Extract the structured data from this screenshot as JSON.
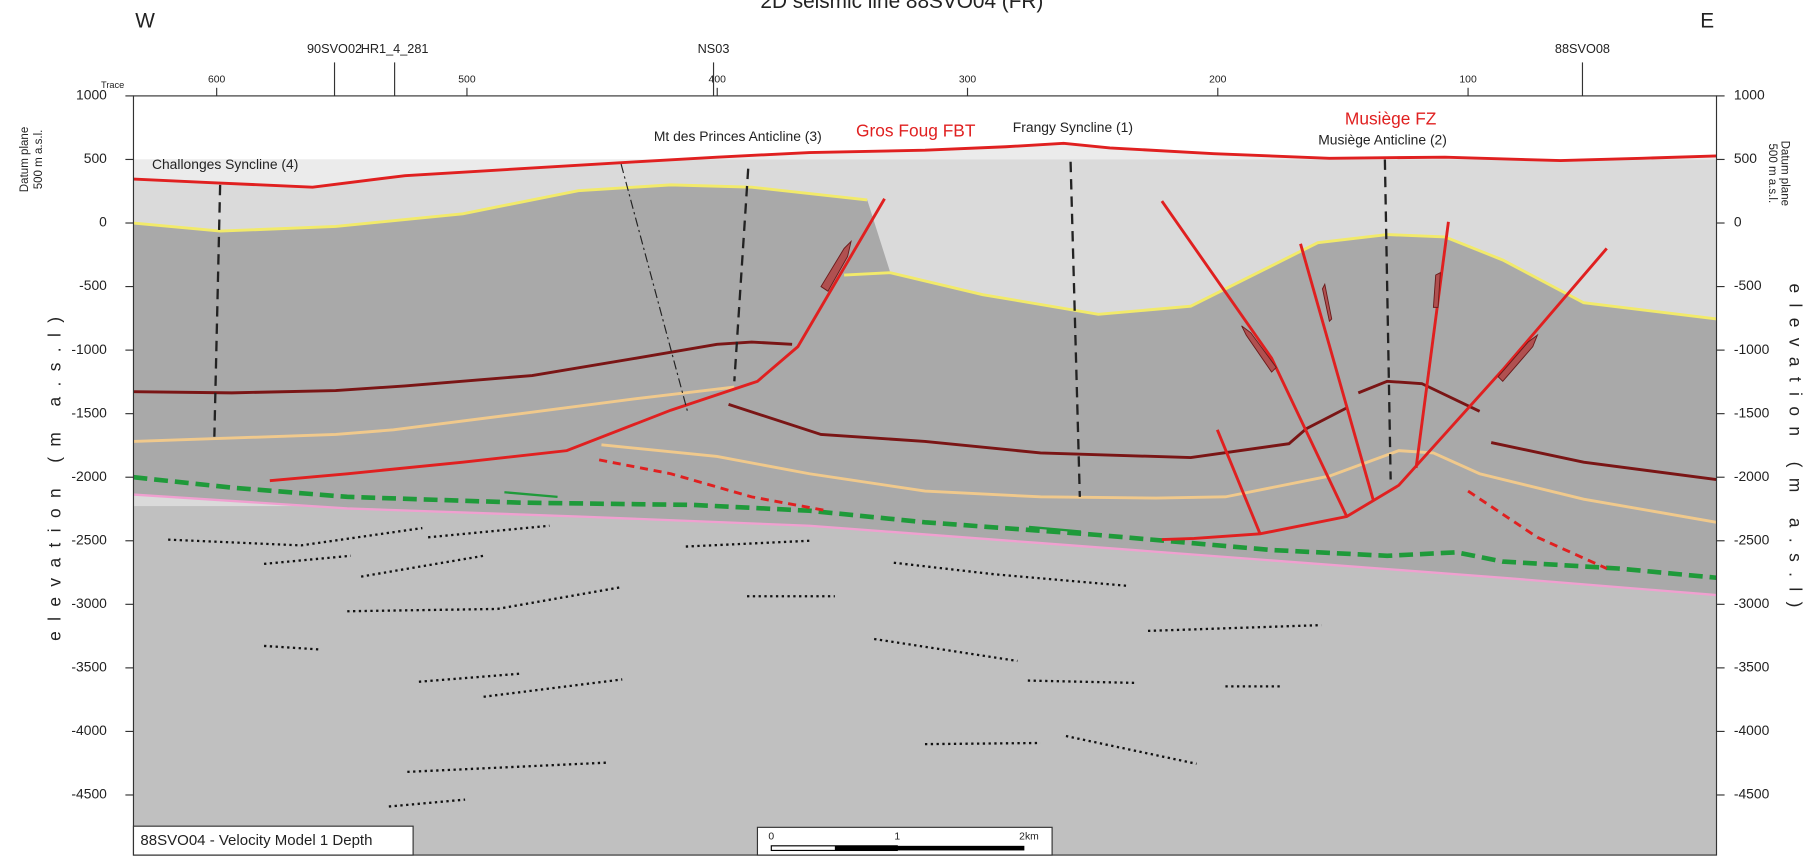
{
  "header": {
    "title": "2D seismic line 88SVO04 (FR)",
    "west": "W",
    "east": "E"
  },
  "wells": [
    "90SVO02",
    "HR1_4_281",
    "NS03",
    "88SVO08"
  ],
  "trace_axis": {
    "label": "Trace",
    "ticks": [
      600,
      500,
      400,
      300,
      200,
      100
    ]
  },
  "elevation_axis": {
    "label": "elevation (m a.s.l)",
    "datum": [
      "Datum plane",
      "500 m a.s.l."
    ],
    "ticks": [
      1000,
      500,
      0,
      -500,
      -1000,
      -1500,
      -2000,
      -2500,
      -3000,
      -3500,
      -4000,
      -4500
    ]
  },
  "annotations": [
    "Challonges Syncline (4)",
    "Mt des Princes Anticline (3)",
    "Gros Foug FBT",
    "Frangy Syncline (1)",
    "Musiège FZ",
    "Musiège Anticline (2)"
  ],
  "model_label": "88SVO04 - Velocity Model 1 Depth",
  "scale_bar": [
    "0",
    "1",
    "2km"
  ]
}
